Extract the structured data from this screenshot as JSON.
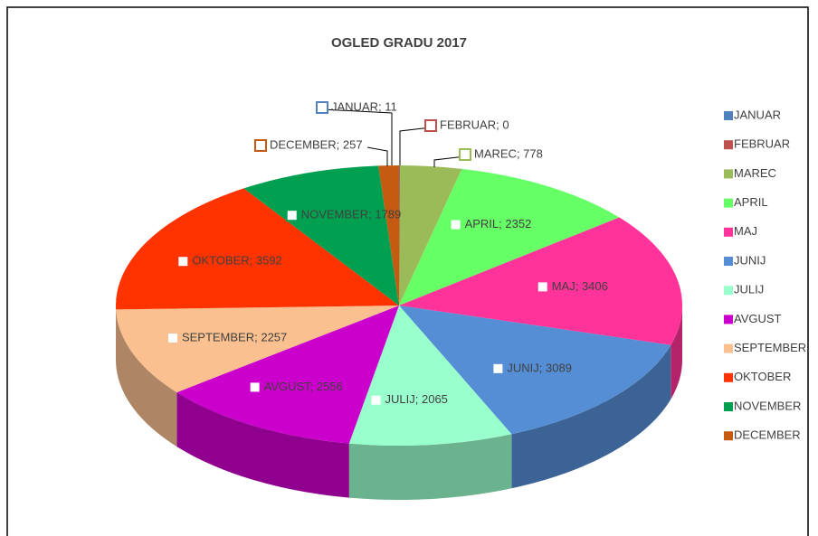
{
  "chart_data": {
    "type": "pie3d",
    "title": "OGLED GRADU 2017",
    "categories": [
      "JANUAR",
      "FEBRUAR",
      "MAREC",
      "APRIL",
      "MAJ",
      "JUNIJ",
      "JULIJ",
      "AVGUST",
      "SEPTEMBER",
      "OKTOBER",
      "NOVEMBER",
      "DECEMBER"
    ],
    "values": [
      11,
      0,
      778,
      2352,
      3406,
      3089,
      2065,
      2556,
      2257,
      3592,
      1789,
      257
    ],
    "value_labels": [
      "JANUAR; 11",
      "FEBRUAR; 0",
      "MAREC; 778",
      "APRIL; 2352",
      "MAJ; 3406",
      "JUNIJ; 3089",
      "JULIJ; 2065",
      "AVGUST; 2556",
      "SEPTEMBER; 2257",
      "OKTOBER; 3592",
      "NOVEMBER; 1789",
      "DECEMBER; 257"
    ],
    "colors": [
      "#4f81bd",
      "#c0504d",
      "#9bbb59",
      "#66ff66",
      "#ff3399",
      "#558ed5",
      "#99ffcc",
      "#cc00cc",
      "#fac090",
      "#ff3300",
      "#00a050",
      "#c55a11"
    ],
    "legend": "right"
  }
}
